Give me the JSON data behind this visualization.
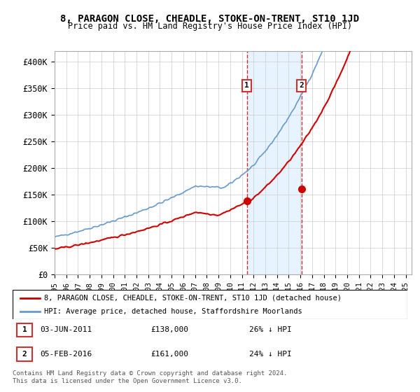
{
  "title": "8, PARAGON CLOSE, CHEADLE, STOKE-ON-TRENT, ST10 1JD",
  "subtitle": "Price paid vs. HM Land Registry's House Price Index (HPI)",
  "ylabel_ticks": [
    "£0",
    "£50K",
    "£100K",
    "£150K",
    "£200K",
    "£250K",
    "£300K",
    "£350K",
    "£400K"
  ],
  "ytick_values": [
    0,
    50000,
    100000,
    150000,
    200000,
    250000,
    300000,
    350000,
    400000
  ],
  "ylim": [
    0,
    420000
  ],
  "xlim_start": 1995.0,
  "xlim_end": 2025.5,
  "xtick_years": [
    1995,
    1996,
    1997,
    1998,
    1999,
    2000,
    2001,
    2002,
    2003,
    2004,
    2005,
    2006,
    2007,
    2008,
    2009,
    2010,
    2011,
    2012,
    2013,
    2014,
    2015,
    2016,
    2017,
    2018,
    2019,
    2020,
    2021,
    2022,
    2023,
    2024,
    2025
  ],
  "red_line_color": "#cc0000",
  "blue_line_color": "#6699cc",
  "marker1_date": "03-JUN-2011",
  "marker1_price": 138000,
  "marker1_x": 2011.42,
  "marker2_date": "05-FEB-2016",
  "marker2_price": 161000,
  "marker2_x": 2016.09,
  "shade_color": "#ddeeff",
  "dashed_color": "#cc3333",
  "legend_label_red": "8, PARAGON CLOSE, CHEADLE, STOKE-ON-TRENT, ST10 1JD (detached house)",
  "legend_label_blue": "HPI: Average price, detached house, Staffordshire Moorlands",
  "table_row1": "1    03-JUN-2011    £138,000    26% ↓ HPI",
  "table_row2": "2    05-FEB-2016    £161,000    24% ↓ HPI",
  "footnote": "Contains HM Land Registry data © Crown copyright and database right 2024.\nThis data is licensed under the Open Government Licence v3.0.",
  "background_color": "#ffffff",
  "grid_color": "#cccccc"
}
